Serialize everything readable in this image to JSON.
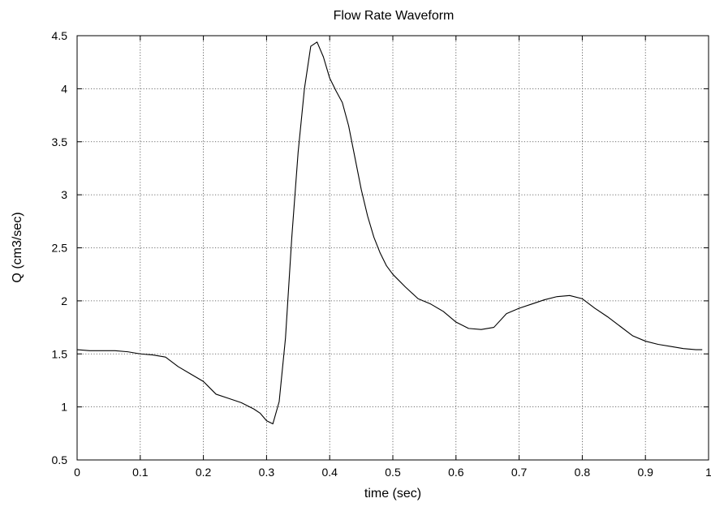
{
  "chart_data": {
    "type": "line",
    "title": "Flow Rate Waveform",
    "xlabel": "time (sec)",
    "ylabel": "Q (cm3/sec)",
    "xlim": [
      0,
      1
    ],
    "ylim": [
      0.5,
      4.5
    ],
    "xticks": [
      0,
      0.1,
      0.2,
      0.3,
      0.4,
      0.5,
      0.6,
      0.7,
      0.8,
      0.9,
      1
    ],
    "xtick_labels": [
      "0",
      "0.1",
      "0.2",
      "0.3",
      "0.4",
      "0.5",
      "0.6",
      "0.7",
      "0.8",
      "0.9",
      "1"
    ],
    "yticks": [
      0.5,
      1,
      1.5,
      2,
      2.5,
      3,
      3.5,
      4,
      4.5
    ],
    "ytick_labels": [
      "0.5",
      "1",
      "1.5",
      "2",
      "2.5",
      "3",
      "3.5",
      "4",
      "4.5"
    ],
    "grid": true,
    "legend": "none",
    "line_color": "#000000",
    "series": [
      {
        "x": [
          0,
          0.02,
          0.04,
          0.06,
          0.08,
          0.1,
          0.12,
          0.14,
          0.16,
          0.18,
          0.2,
          0.22,
          0.24,
          0.26,
          0.28,
          0.29,
          0.3,
          0.31,
          0.32,
          0.33,
          0.34,
          0.35,
          0.36,
          0.37,
          0.38,
          0.39,
          0.4,
          0.41,
          0.42,
          0.43,
          0.44,
          0.45,
          0.46,
          0.47,
          0.48,
          0.49,
          0.5,
          0.52,
          0.54,
          0.56,
          0.58,
          0.6,
          0.62,
          0.64,
          0.66,
          0.68,
          0.7,
          0.72,
          0.74,
          0.76,
          0.78,
          0.8,
          0.82,
          0.84,
          0.86,
          0.88,
          0.9,
          0.92,
          0.94,
          0.96,
          0.98,
          0.99
        ],
        "y": [
          1.54,
          1.53,
          1.53,
          1.53,
          1.52,
          1.5,
          1.49,
          1.47,
          1.38,
          1.31,
          1.24,
          1.12,
          1.08,
          1.04,
          0.98,
          0.94,
          0.87,
          0.84,
          1.05,
          1.65,
          2.6,
          3.4,
          4.0,
          4.4,
          4.44,
          4.3,
          4.1,
          3.98,
          3.87,
          3.65,
          3.35,
          3.05,
          2.8,
          2.6,
          2.45,
          2.33,
          2.25,
          2.13,
          2.02,
          1.97,
          1.9,
          1.8,
          1.74,
          1.73,
          1.75,
          1.88,
          1.93,
          1.97,
          2.01,
          2.04,
          2.05,
          2.02,
          1.93,
          1.85,
          1.76,
          1.67,
          1.62,
          1.59,
          1.57,
          1.55,
          1.54,
          1.54
        ]
      }
    ]
  }
}
